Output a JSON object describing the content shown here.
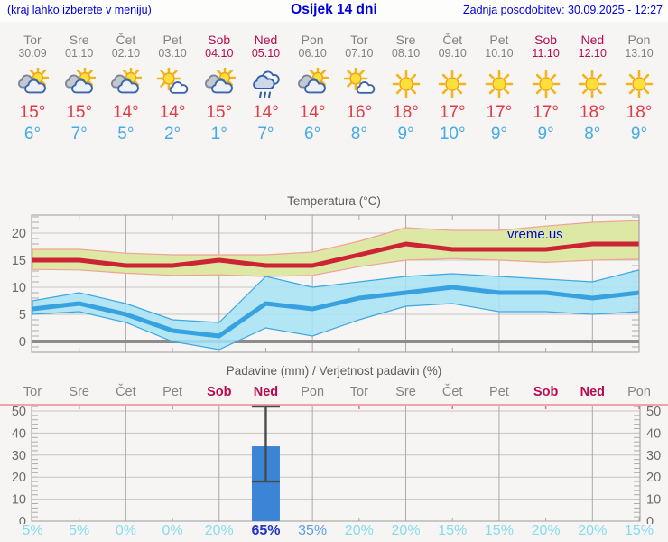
{
  "header": {
    "hint": "(kraj lahko izberete v meniju)",
    "title": "Osijek 14 dni",
    "updated": "Zadnja posodobitev: 30.09.2025 - 12:27"
  },
  "forecast": {
    "days": [
      {
        "name": "Tor",
        "date": "30.09",
        "weekend": false,
        "icon": "partly-cloudy",
        "tmax": "15°",
        "tmin": "6°"
      },
      {
        "name": "Sre",
        "date": "01.10",
        "weekend": false,
        "icon": "partly-cloudy",
        "tmax": "15°",
        "tmin": "7°"
      },
      {
        "name": "Čet",
        "date": "02.10",
        "weekend": false,
        "icon": "partly-cloudy",
        "tmax": "14°",
        "tmin": "5°"
      },
      {
        "name": "Pet",
        "date": "03.10",
        "weekend": false,
        "icon": "mostly-sunny",
        "tmax": "14°",
        "tmin": "2°"
      },
      {
        "name": "Sob",
        "date": "04.10",
        "weekend": true,
        "icon": "partly-cloudy",
        "tmax": "15°",
        "tmin": "1°"
      },
      {
        "name": "Ned",
        "date": "05.10",
        "weekend": true,
        "icon": "rain",
        "tmax": "14°",
        "tmin": "7°"
      },
      {
        "name": "Pon",
        "date": "06.10",
        "weekend": false,
        "icon": "partly-cloudy",
        "tmax": "14°",
        "tmin": "6°"
      },
      {
        "name": "Tor",
        "date": "07.10",
        "weekend": false,
        "icon": "mostly-sunny",
        "tmax": "16°",
        "tmin": "8°"
      },
      {
        "name": "Sre",
        "date": "08.10",
        "weekend": false,
        "icon": "sunny",
        "tmax": "18°",
        "tmin": "9°"
      },
      {
        "name": "Čet",
        "date": "09.10",
        "weekend": false,
        "icon": "sunny",
        "tmax": "17°",
        "tmin": "10°"
      },
      {
        "name": "Pet",
        "date": "10.10",
        "weekend": false,
        "icon": "sunny",
        "tmax": "17°",
        "tmin": "9°"
      },
      {
        "name": "Sob",
        "date": "11.10",
        "weekend": true,
        "icon": "sunny",
        "tmax": "17°",
        "tmin": "9°"
      },
      {
        "name": "Ned",
        "date": "12.10",
        "weekend": true,
        "icon": "sunny",
        "tmax": "18°",
        "tmin": "8°"
      },
      {
        "name": "Pon",
        "date": "13.10",
        "weekend": false,
        "icon": "sunny",
        "tmax": "18°",
        "tmin": "9°"
      }
    ]
  },
  "chart_data": [
    {
      "type": "line",
      "title": "Temperatura (°C)",
      "watermark": "vreme.us",
      "categories": [
        "Tor",
        "Sre",
        "Čet",
        "Pet",
        "Sob",
        "Ned",
        "Pon",
        "Tor",
        "Sre",
        "Čet",
        "Pet",
        "Sob",
        "Ned",
        "Pon"
      ],
      "ylim": [
        -2,
        23
      ],
      "yticks": [
        0,
        5,
        10,
        15,
        20
      ],
      "grid": true,
      "series": [
        {
          "name": "Maksimalna temperatura",
          "color": "#cc2435",
          "values": [
            15,
            15,
            14,
            14,
            15,
            14,
            14,
            16,
            18,
            17,
            17,
            17,
            18,
            18
          ]
        },
        {
          "name": "Minimalna temperatura",
          "color": "#38a2e1",
          "values": [
            6,
            7,
            5,
            2,
            1,
            7,
            6,
            8,
            9,
            10,
            9,
            9,
            8,
            9
          ]
        }
      ],
      "bands": [
        {
          "name": "max-temp-range",
          "fill": "#dde8a4",
          "stroke": "#f0a295",
          "opacity": 1,
          "upper": [
            17,
            17,
            16.3,
            16,
            16,
            16,
            16.5,
            18.5,
            21,
            20.5,
            20.5,
            21.3,
            22,
            22.3
          ],
          "lower": [
            13.3,
            13.2,
            12.6,
            12.2,
            12.3,
            12,
            12.2,
            13.8,
            15,
            15.3,
            15,
            14.6,
            15,
            15.2
          ]
        },
        {
          "name": "min-temp-range",
          "fill": "#a7e3f4",
          "stroke": "#3ea6e2",
          "opacity": 0.85,
          "upper": [
            7.5,
            9,
            7,
            4,
            3.5,
            12,
            10,
            11,
            12,
            12.5,
            12,
            11.5,
            11,
            13.2
          ],
          "lower": [
            5,
            5.5,
            3.5,
            0,
            -1.5,
            2.5,
            1,
            4,
            6.5,
            7,
            5.5,
            5.5,
            5,
            5.5
          ]
        }
      ],
      "zero_line": true
    },
    {
      "type": "bar",
      "title": "Padavine (mm) / Verjetnost padavin (%)",
      "categories": [
        "Tor",
        "Sre",
        "Čet",
        "Pet",
        "Sob",
        "Ned",
        "Pon",
        "Tor",
        "Sre",
        "Čet",
        "Pet",
        "Sob",
        "Ned",
        "Pon"
      ],
      "weekend_indices": [
        4,
        5,
        11,
        12
      ],
      "values": [
        0,
        0,
        0,
        0,
        0,
        34,
        0,
        0,
        0,
        0,
        0,
        0,
        0,
        0
      ],
      "whiskers": [
        {
          "day_index": 5,
          "low": 18,
          "high": 53
        }
      ],
      "probabilities": [
        "5%",
        "5%",
        "0%",
        "0%",
        "20%",
        "65%",
        "35%",
        "20%",
        "20%",
        "15%",
        "15%",
        "20%",
        "20%",
        "15%"
      ],
      "ylim": [
        0,
        53
      ],
      "yticks": [
        0,
        10,
        20,
        30,
        40,
        50
      ],
      "bar_color": "#3b84d6",
      "prob_colors": {
        "low": "#84dcf2",
        "mid": "#5e9de4",
        "high": "#2033c4"
      }
    }
  ],
  "colors": {
    "weekend": "#b80a4e",
    "weekday": "#818181",
    "tmax": "#e03a48",
    "tmin": "#47a9e8",
    "link_blue": "#0000dd"
  }
}
